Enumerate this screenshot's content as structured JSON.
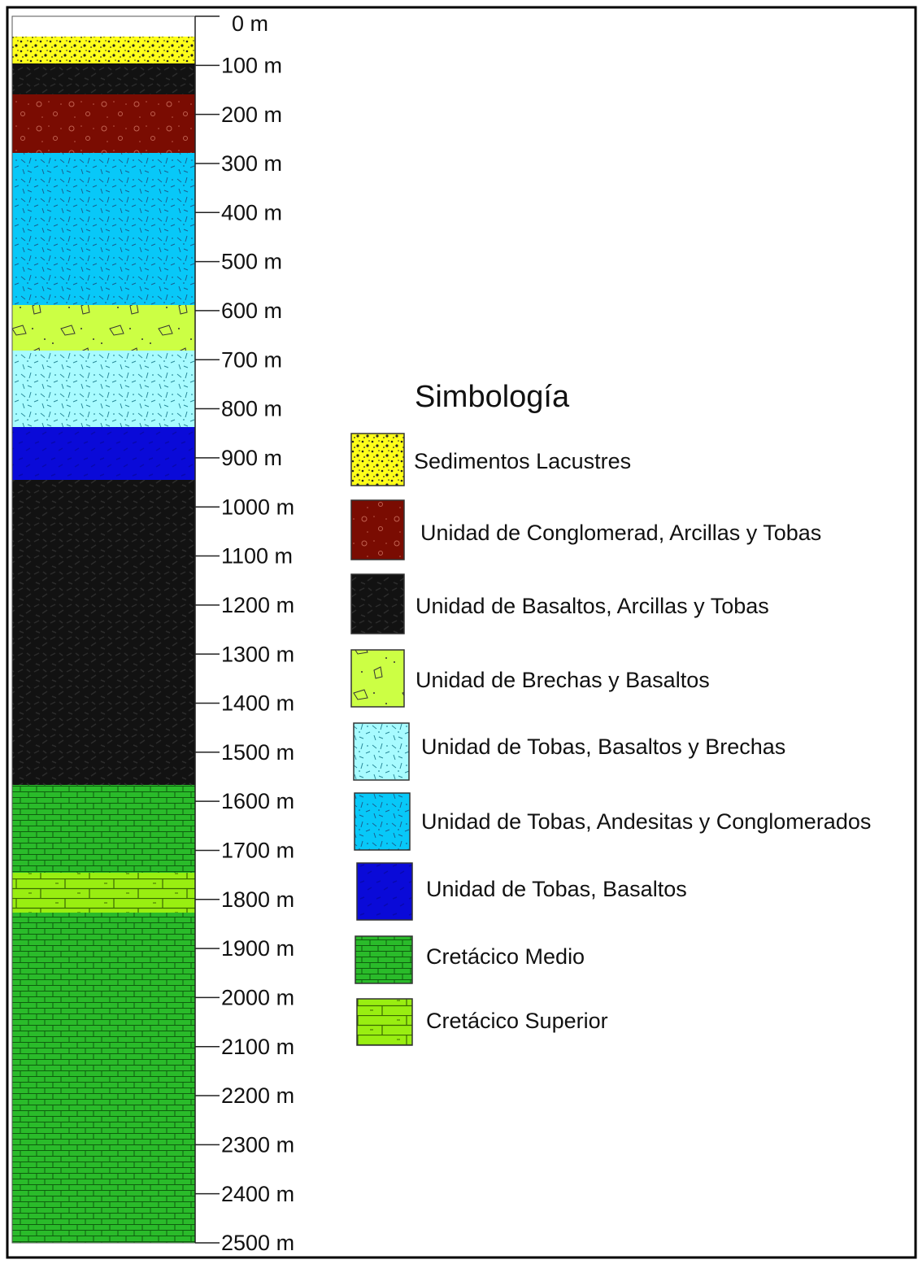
{
  "depth_ticks": [
    "0 m",
    "100 m",
    "200 m",
    "300 m",
    "400 m",
    "500 m",
    "600 m",
    "700 m",
    "800 m",
    "900 m",
    "1000 m",
    "1100 m",
    "1200 m",
    "1300 m",
    "1400 m",
    "1500 m",
    "1600 m",
    "1700 m",
    "1800 m",
    "1900 m",
    "2000 m",
    "2100 m",
    "2200 m",
    "2300 m",
    "2400 m",
    "2500 m"
  ],
  "legend": {
    "title": "Simbología",
    "items": [
      "Sedimentos Lacustres",
      "Unidad de Conglomerad, Arcillas y Tobas",
      "Unidad de Basaltos, Arcillas y Tobas",
      "Unidad de Brechas y Basaltos",
      "Unidad de Tobas, Basaltos y Brechas",
      "Unidad de Tobas, Andesitas y Conglomerados",
      "Unidad de Tobas, Basaltos",
      "Cretácico Medio",
      "Cretácico Superior"
    ]
  }
}
